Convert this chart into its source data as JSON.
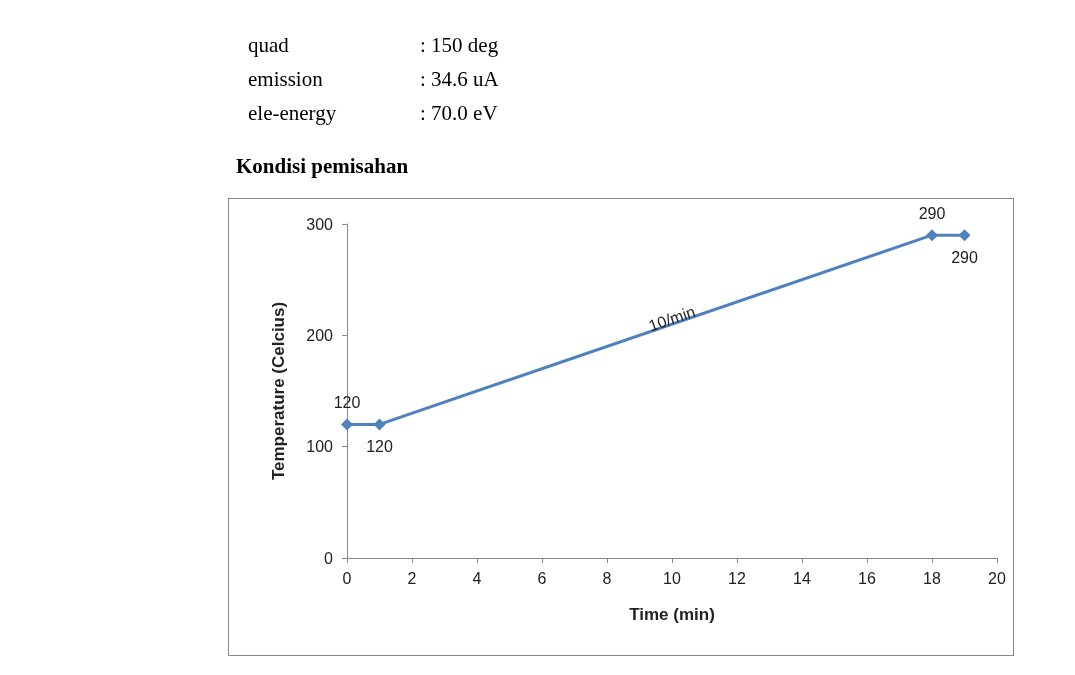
{
  "chart_data": {
    "type": "line",
    "title": "Kondisi pemisahan",
    "xlabel": "Time (min)",
    "ylabel": "Temperature (Celcius)",
    "x": [
      0,
      1,
      18,
      19
    ],
    "series": [
      {
        "color": "#4f81bd",
        "values": [
          120,
          120,
          290,
          290
        ]
      }
    ],
    "xlim": [
      0,
      20
    ],
    "xticks": [
      0,
      2,
      4,
      6,
      8,
      10,
      12,
      14,
      16,
      18,
      20
    ],
    "ylim": [
      0,
      300
    ],
    "yticks": [
      0,
      100,
      200,
      300
    ],
    "grid": false,
    "marker": "diamond",
    "line_style": "solid",
    "data_labels": true,
    "annotations": [
      "quad : 150 deg",
      "emission : 34.6 uA",
      "ele-energy : 70.0 eV",
      {
        "text": "10/min",
        "x": 10,
        "y": 215
      }
    ]
  }
}
